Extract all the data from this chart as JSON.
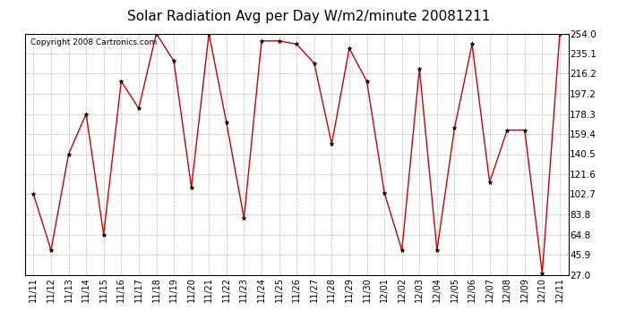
{
  "title": "Solar Radiation Avg per Day W/m2/minute 20081211",
  "copyright": "Copyright 2008 Cartronics.com",
  "dates": [
    "11/11",
    "11/12",
    "11/13",
    "11/14",
    "11/15",
    "11/16",
    "11/17",
    "11/18",
    "11/19",
    "11/20",
    "11/21",
    "11/22",
    "11/23",
    "11/24",
    "11/25",
    "11/26",
    "11/27",
    "11/28",
    "11/29",
    "11/30",
    "12/01",
    "12/02",
    "12/03",
    "12/04",
    "12/05",
    "12/06",
    "12/07",
    "12/08",
    "12/09",
    "12/10",
    "12/11"
  ],
  "values": [
    102.7,
    50.0,
    140.5,
    178.3,
    64.8,
    209.0,
    183.5,
    254.0,
    228.0,
    109.0,
    254.0,
    170.0,
    80.0,
    247.0,
    247.0,
    244.0,
    226.0,
    150.0,
    240.0,
    209.0,
    104.0,
    50.0,
    221.0,
    50.0,
    165.0,
    244.0,
    114.0,
    163.0,
    163.0,
    28.0,
    254.0
  ],
  "ymin": 27.0,
  "ymax": 254.0,
  "yticks": [
    27.0,
    45.9,
    64.8,
    83.8,
    102.7,
    121.6,
    140.5,
    159.4,
    178.3,
    197.2,
    216.2,
    235.1,
    254.0
  ],
  "line_color": "#cc0000",
  "marker_color": "#000000",
  "bg_color": "#ffffff",
  "grid_color": "#aaaaaa",
  "title_fontsize": 11,
  "copyright_fontsize": 6.5,
  "tick_fontsize": 7.5,
  "xtick_fontsize": 7.0
}
